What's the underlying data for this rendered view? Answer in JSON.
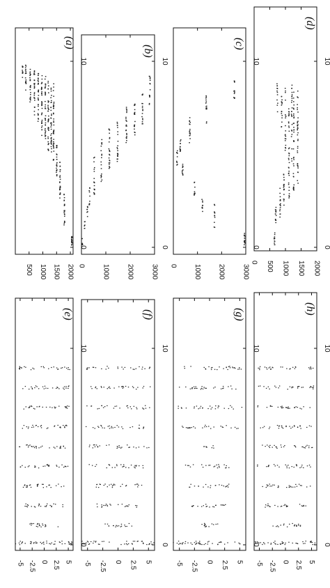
{
  "chart_data": [
    {
      "panel_label": "(a)",
      "type": "scatter",
      "x_ticks": [
        "0",
        "10"
      ],
      "y_ticks": [
        "500",
        "1000",
        "1500",
        "2000"
      ],
      "xlim": [
        0,
        14
      ],
      "ylim": [
        0,
        2100
      ],
      "clusters": [
        {
          "x": [
            0.1,
            0.6
          ],
          "y": 2050,
          "n": 18
        },
        {
          "x": [
            1.2,
            3.0
          ],
          "y": 1780,
          "n": 22
        },
        {
          "x": [
            2.4,
            4.6
          ],
          "y": 1620,
          "n": 26
        },
        {
          "x": [
            3.8,
            5.6
          ],
          "y": 1500,
          "n": 24
        },
        {
          "x": [
            4.6,
            8.8
          ],
          "y": 1390,
          "n": 40
        },
        {
          "x": [
            5.0,
            8.9
          ],
          "y": 1300,
          "n": 38
        },
        {
          "x": [
            5.2,
            9.0
          ],
          "y": 1200,
          "n": 38
        },
        {
          "x": [
            5.6,
            9.2
          ],
          "y": 1090,
          "n": 36
        },
        {
          "x": [
            6.0,
            9.3
          ],
          "y": 960,
          "n": 34
        },
        {
          "x": [
            6.6,
            9.4
          ],
          "y": 830,
          "n": 30
        },
        {
          "x": [
            7.0,
            9.5
          ],
          "y": 690,
          "n": 28
        },
        {
          "x": [
            7.8,
            9.6
          ],
          "y": 540,
          "n": 24
        },
        {
          "x": [
            8.4,
            9.8
          ],
          "y": 380,
          "n": 18
        },
        {
          "x": [
            9.0,
            9.8
          ],
          "y": 260,
          "n": 10
        }
      ]
    },
    {
      "panel_label": "(b)",
      "type": "scatter",
      "x_ticks": [
        "0",
        "10"
      ],
      "y_ticks": [
        "0",
        "1000",
        "2000",
        "3000"
      ],
      "xlim": [
        0,
        14
      ],
      "ylim": [
        0,
        3000
      ],
      "clusters": [
        {
          "x": [
            0.1,
            0.5
          ],
          "y": 40,
          "n": 6
        },
        {
          "x": [
            0.8,
            1.4
          ],
          "y": 130,
          "n": 6
        },
        {
          "x": [
            1.4,
            2.2
          ],
          "y": 240,
          "n": 8
        },
        {
          "x": [
            2.0,
            3.2
          ],
          "y": 330,
          "n": 10
        },
        {
          "x": [
            2.8,
            5.4
          ],
          "y": 520,
          "n": 18
        },
        {
          "x": [
            3.4,
            5.8
          ],
          "y": 820,
          "n": 20
        },
        {
          "x": [
            4.0,
            6.4
          ],
          "y": 1140,
          "n": 22
        },
        {
          "x": [
            4.6,
            7.0
          ],
          "y": 1480,
          "n": 22
        },
        {
          "x": [
            5.2,
            7.6
          ],
          "y": 1840,
          "n": 22
        },
        {
          "x": [
            6.0,
            7.8
          ],
          "y": 2180,
          "n": 20
        },
        {
          "x": [
            6.6,
            8.4
          ],
          "y": 2500,
          "n": 18
        },
        {
          "x": [
            7.6,
            9.2
          ],
          "y": 2800,
          "n": 14
        }
      ]
    },
    {
      "panel_label": "(c)",
      "type": "scatter",
      "x_ticks": [
        "0",
        "10"
      ],
      "y_ticks": [
        "0",
        "1000",
        "2000",
        "3000"
      ],
      "xlim": [
        0,
        14
      ],
      "ylim": [
        0,
        3000
      ],
      "clusters": [
        {
          "x": [
            0.1,
            0.8
          ],
          "y": 2950,
          "n": 14
        },
        {
          "x": [
            1.0,
            2.4
          ],
          "y": 1700,
          "n": 12
        },
        {
          "x": [
            1.8,
            2.8
          ],
          "y": 1200,
          "n": 10
        },
        {
          "x": [
            2.8,
            3.6
          ],
          "y": 870,
          "n": 10
        },
        {
          "x": [
            3.8,
            4.6
          ],
          "y": 380,
          "n": 10
        },
        {
          "x": [
            4.4,
            5.2
          ],
          "y": 150,
          "n": 10
        },
        {
          "x": [
            5.0,
            5.8
          ],
          "y": 290,
          "n": 12
        },
        {
          "x": [
            5.6,
            7.0
          ],
          "y": 680,
          "n": 16
        },
        {
          "x": [
            6.6,
            8.2
          ],
          "y": 1360,
          "n": 16
        },
        {
          "x": [
            8.0,
            9.0
          ],
          "y": 2520,
          "n": 12
        }
      ]
    },
    {
      "panel_label": "(d)",
      "type": "scatter",
      "x_ticks": [
        "0",
        "10"
      ],
      "y_ticks": [
        "0",
        "500",
        "1000",
        "1500",
        "2000"
      ],
      "xlim": [
        0,
        14
      ],
      "ylim": [
        0,
        2000
      ],
      "clusters": [
        {
          "x": [
            0.1,
            0.8
          ],
          "y": 650,
          "n": 12
        },
        {
          "x": [
            1.0,
            2.2
          ],
          "y": 690,
          "n": 14
        },
        {
          "x": [
            1.6,
            3.2
          ],
          "y": 830,
          "n": 16
        },
        {
          "x": [
            2.2,
            4.0
          ],
          "y": 950,
          "n": 18
        },
        {
          "x": [
            2.6,
            7.8
          ],
          "y": 1110,
          "n": 34
        },
        {
          "x": [
            3.0,
            8.4
          ],
          "y": 1260,
          "n": 36
        },
        {
          "x": [
            3.4,
            8.6
          ],
          "y": 1390,
          "n": 36
        },
        {
          "x": [
            4.6,
            8.8
          ],
          "y": 1200,
          "n": 24
        },
        {
          "x": [
            5.2,
            8.6
          ],
          "y": 1000,
          "n": 20
        },
        {
          "x": [
            6.4,
            8.4
          ],
          "y": 880,
          "n": 16
        },
        {
          "x": [
            7.0,
            8.8
          ],
          "y": 740,
          "n": 12
        }
      ]
    },
    {
      "panel_label": "(e)",
      "type": "scatter",
      "x_ticks": [
        "0",
        "10"
      ],
      "y_ticks": [
        "5",
        "2.5",
        "0",
        "-2.5",
        "-5"
      ],
      "xlim": [
        0,
        14
      ],
      "ylim": [
        -6,
        6
      ],
      "columns": [
        {
          "x": 0.1,
          "y": [
            -6,
            6
          ],
          "n": 44
        },
        {
          "x": 1.0,
          "y": [
            -3,
            3
          ],
          "n": 20
        },
        {
          "x": 2.0,
          "y": [
            -4,
            4
          ],
          "n": 24
        },
        {
          "x": 3.0,
          "y": [
            -4.5,
            4.5
          ],
          "n": 26
        },
        {
          "x": 4.0,
          "y": [
            -5,
            5
          ],
          "n": 28
        },
        {
          "x": 5.0,
          "y": [
            -5.2,
            5.2
          ],
          "n": 28
        },
        {
          "x": 6.0,
          "y": [
            -5.4,
            5.4
          ],
          "n": 28
        },
        {
          "x": 7.0,
          "y": [
            -5.4,
            5.4
          ],
          "n": 28
        },
        {
          "x": 8.0,
          "y": [
            -5.4,
            5.4
          ],
          "n": 28
        },
        {
          "x": 9.0,
          "y": [
            -5.4,
            5.4
          ],
          "n": 28
        }
      ]
    },
    {
      "panel_label": "(f)",
      "type": "scatter",
      "x_ticks": [
        "0",
        "10"
      ],
      "y_ticks": [
        "5",
        "2.5",
        "0",
        "-2.5",
        "-5"
      ],
      "xlim": [
        0,
        14
      ],
      "ylim": [
        -6,
        6
      ],
      "columns": [
        {
          "x": 0.1,
          "y": [
            -6,
            6
          ],
          "n": 44
        },
        {
          "x": 1.0,
          "y": [
            -2.5,
            2.5
          ],
          "n": 18
        },
        {
          "x": 2.0,
          "y": [
            -3.5,
            3.5
          ],
          "n": 22
        },
        {
          "x": 3.0,
          "y": [
            -4.5,
            4.5
          ],
          "n": 26
        },
        {
          "x": 4.0,
          "y": [
            -5,
            5
          ],
          "n": 28
        },
        {
          "x": 5.0,
          "y": [
            -5.2,
            5.2
          ],
          "n": 28
        },
        {
          "x": 6.0,
          "y": [
            -5.4,
            5.4
          ],
          "n": 28
        },
        {
          "x": 7.0,
          "y": [
            -5.4,
            5.4
          ],
          "n": 28
        },
        {
          "x": 8.0,
          "y": [
            -5.4,
            5.4
          ],
          "n": 28
        },
        {
          "x": 9.0,
          "y": [
            -5.4,
            5.4
          ],
          "n": 28
        }
      ]
    },
    {
      "panel_label": "(g)",
      "type": "scatter",
      "x_ticks": [
        "0",
        "10"
      ],
      "y_ticks": [
        "5",
        "2.5",
        "0",
        "-2.5",
        "-5"
      ],
      "xlim": [
        0,
        14
      ],
      "ylim": [
        -6,
        6
      ],
      "columns": [
        {
          "x": 0.1,
          "y": [
            -6,
            6
          ],
          "n": 44
        },
        {
          "x": 1.0,
          "y": [
            -1.5,
            1.5
          ],
          "n": 14
        },
        {
          "x": 2.0,
          "y": [
            -3,
            3
          ],
          "n": 20
        },
        {
          "x": 3.0,
          "y": [
            -3.5,
            3.5
          ],
          "n": 22
        },
        {
          "x": 4.0,
          "y": [
            -4,
            4
          ],
          "n": 22
        },
        {
          "x": 5.0,
          "y": [
            -1,
            1
          ],
          "n": 8
        },
        {
          "x": 6.0,
          "y": [
            -5,
            5
          ],
          "n": 26
        },
        {
          "x": 7.0,
          "y": [
            -5.4,
            5.4
          ],
          "n": 28
        },
        {
          "x": 8.0,
          "y": [
            -5.4,
            5.4
          ],
          "n": 28
        },
        {
          "x": 9.0,
          "y": [
            -5.4,
            5.4
          ],
          "n": 28
        }
      ]
    },
    {
      "panel_label": "(h)",
      "type": "scatter",
      "x_ticks": [
        "0",
        "10"
      ],
      "y_ticks": [
        "5",
        "2.5",
        "0",
        "-2.5",
        "-5"
      ],
      "xlim": [
        0,
        14
      ],
      "ylim": [
        -6,
        6
      ],
      "columns": [
        {
          "x": 0.1,
          "y": [
            -6,
            6
          ],
          "n": 44
        },
        {
          "x": 1.0,
          "y": [
            -3,
            3
          ],
          "n": 20
        },
        {
          "x": 2.0,
          "y": [
            -4,
            4
          ],
          "n": 24
        },
        {
          "x": 3.0,
          "y": [
            -5,
            5
          ],
          "n": 28
        },
        {
          "x": 4.0,
          "y": [
            -5.4,
            5.4
          ],
          "n": 28
        },
        {
          "x": 5.0,
          "y": [
            -5.4,
            5.4
          ],
          "n": 28
        },
        {
          "x": 6.0,
          "y": [
            -5.4,
            5.4
          ],
          "n": 28
        },
        {
          "x": 7.0,
          "y": [
            -5.4,
            5.4
          ],
          "n": 28
        },
        {
          "x": 8.0,
          "y": [
            -5.4,
            5.4
          ],
          "n": 28
        },
        {
          "x": 9.0,
          "y": [
            -5.4,
            5.4
          ],
          "n": 28
        }
      ]
    }
  ]
}
